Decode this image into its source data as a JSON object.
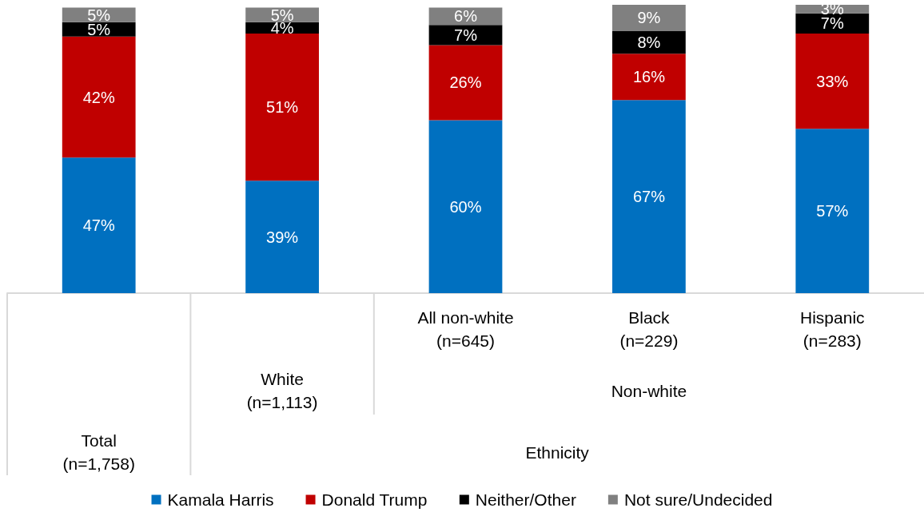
{
  "chart_data": {
    "type": "bar",
    "stacked": true,
    "categories": [
      null,
      null,
      "All non-white\n(n=645)",
      "Black\n(n=229)",
      "Hispanic\n(n=283)"
    ],
    "series": [
      {
        "name": "Kamala Harris",
        "color": "#0070c0",
        "values": [
          47,
          39,
          60,
          67,
          57
        ],
        "value_labels": [
          "47%",
          "39%",
          "60%",
          "67%",
          "57%"
        ]
      },
      {
        "name": "Donald Trump",
        "color": "#c00000",
        "values": [
          42,
          51,
          26,
          16,
          33
        ],
        "value_labels": [
          "42%",
          "51%",
          "26%",
          "16%",
          "33%"
        ]
      },
      {
        "name": "Neither/Other",
        "color": "#000000",
        "values": [
          5,
          4,
          7,
          8,
          7
        ],
        "value_labels": [
          "5%",
          "4%",
          "7%",
          "8%",
          "7%"
        ]
      },
      {
        "name": "Not sure/Undecided",
        "color": "#808080",
        "values": [
          5,
          5,
          6,
          9,
          3
        ],
        "value_labels": [
          "5%",
          "5%",
          "6%",
          "9%",
          "3%"
        ]
      }
    ],
    "annotations": [
      "White\n(n=1,113)",
      "Non-white",
      "Total\n(n=1,758)",
      "Ethnicity"
    ],
    "tick_labels": "x",
    "legend": "bottom"
  }
}
